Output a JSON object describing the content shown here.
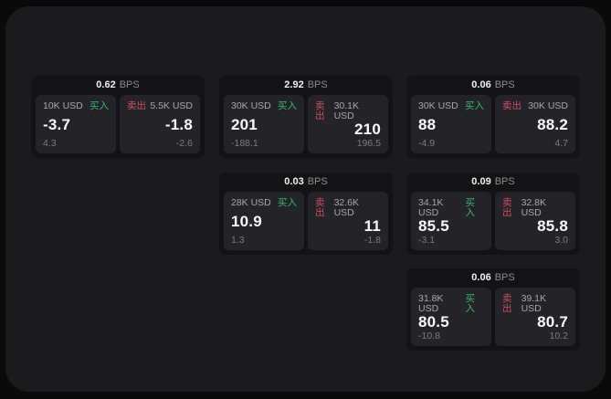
{
  "labels": {
    "bps_unit": "BPS",
    "buy": "买入",
    "sell": "卖出"
  },
  "colors": {
    "outer_bg": "#0a0a0b",
    "panel_bg": "#1b1b1d",
    "card_bg": "#131315",
    "tile_bg": "#242428",
    "buy_green": "#3cb374",
    "sell_red": "#cd5063",
    "value_white": "#fafafa",
    "muted_gray": "#8d8d90"
  },
  "cards": [
    {
      "bps": "0.62",
      "buy": {
        "size": "10K USD",
        "value": "-3.7",
        "delta": "4.3"
      },
      "sell": {
        "size": "5.5K USD",
        "value": "-1.8",
        "delta": "-2.6"
      }
    },
    {
      "bps": "2.92",
      "buy": {
        "size": "30K USD",
        "value": "201",
        "delta": "-188.1"
      },
      "sell": {
        "size": "30.1K USD",
        "value": "210",
        "delta": "196.5"
      }
    },
    {
      "bps": "0.06",
      "buy": {
        "size": "30K USD",
        "value": "88",
        "delta": "-4.9"
      },
      "sell": {
        "size": "30K USD",
        "value": "88.2",
        "delta": "4.7"
      }
    },
    {
      "bps": "0.03",
      "buy": {
        "size": "28K USD",
        "value": "10.9",
        "delta": "1.3"
      },
      "sell": {
        "size": "32.6K USD",
        "value": "11",
        "delta": "-1.8"
      }
    },
    {
      "bps": "0.09",
      "buy": {
        "size": "34.1K USD",
        "value": "85.5",
        "delta": "-3.1"
      },
      "sell": {
        "size": "32.8K USD",
        "value": "85.8",
        "delta": "3.0"
      }
    },
    {
      "bps": "0.06",
      "buy": {
        "size": "31.8K USD",
        "value": "80.5",
        "delta": "-10.8"
      },
      "sell": {
        "size": "39.1K USD",
        "value": "80.7",
        "delta": "10.2"
      }
    }
  ]
}
